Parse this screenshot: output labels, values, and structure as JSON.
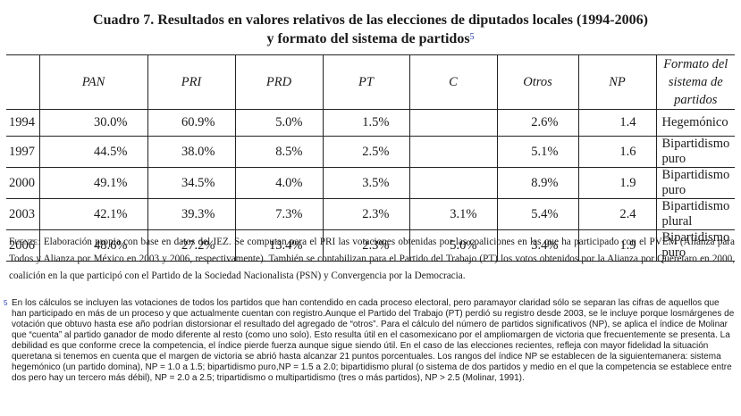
{
  "title": {
    "line1": "Cuadro 7. Resultados en valores relativos de las elecciones de diputados locales (1994-2006)",
    "line2": "y formato del sistema de partidos",
    "footnote_ref": "5"
  },
  "table": {
    "headers": [
      "",
      "PAN",
      "PRI",
      "PRD",
      "PT",
      "C",
      "Otros",
      "NP",
      "Formato del sistema de partidos"
    ],
    "rows": [
      {
        "year": "1994",
        "pan": "30.0%",
        "pri": "60.9%",
        "prd": "5.0%",
        "pt": "1.5%",
        "c": "",
        "otros": "2.6%",
        "np": "1.4",
        "formato": "Hegemónico"
      },
      {
        "year": "1997",
        "pan": "44.5%",
        "pri": "38.0%",
        "prd": "8.5%",
        "pt": "2.5%",
        "c": "",
        "otros": "5.1%",
        "np": "1.6",
        "formato": "Bipartidismo puro"
      },
      {
        "year": "2000",
        "pan": "49.1%",
        "pri": "34.5%",
        "prd": "4.0%",
        "pt": "3.5%",
        "c": "",
        "otros": "8.9%",
        "np": "1.9",
        "formato": "Bipartidismo puro"
      },
      {
        "year": "2003",
        "pan": "42.1%",
        "pri": "39.3%",
        "prd": "7.3%",
        "pt": "2.3%",
        "c": "3.1%",
        "otros": "5.4%",
        "np": "2.4",
        "formato": "Bipartidismo plural"
      },
      {
        "year": "2006",
        "pan": "48.6%",
        "pri": "27.2%",
        "prd": "13.4%",
        "pt": "2.3%",
        "c": "5.0%",
        "otros": "3.4%",
        "np": "1.9",
        "formato": "Bipartidismo puro"
      }
    ]
  },
  "source": {
    "label": "Fuente",
    "text": ": Elaboración propia con base en datos del IEZ. Se computan para el PRI las votaciones obtenidas por las coaliciones en las que ha participado con el PVEM (Alianza para Todos y Alianza por México en 2003 y 2006, respectivamente). También se contabilizan para el Partido del Trabajo (PT) los votos obtenidos por la Alianza por Querétaro en 2000, coalición en la que participó con el Partido de la Sociedad Nacionalista (PSN) y Convergencia por la Democracia."
  },
  "footnote": {
    "mark": "5",
    "text": "En los cálculos se incluyen las votaciones de todos los partidos que han contendido en cada proceso electoral, pero paramayor claridad sólo se separan las cifras de aquellos que han participado en más de un proceso y que actualmente cuentan con registro.Aunque el Partido del Trabajo (PT) perdió su registro desde 2003, se le incluye porque losmárgenes de votación que obtuvo hasta ese año podrían distorsionar el resultado del agregado de “otros”. Para el cálculo del número de partidos significativos (NP), se aplica el índice de Molinar que “cuenta” al partido ganador de modo diferente al resto (como uno solo). Esto resulta útil en el casomexicano por el ampliomargen de victoria que frecuentemente se presenta. La debilidad es que conforme crece la competencia, el índice pierde fuerza aunque sigue siendo útil. En el caso de las elecciones recientes, refleja con mayor fidelidad la situación queretana si tenemos en cuenta que el margen de victoria se abrió hasta alcanzar 21 puntos porcentuales. Los rangos del índice NP se establecen de la siguientemanera: sistema hegemónico (un partido domina), NP = 1.0 a 1.5; bipartidismo puro,NP = 1.5 a 2.0; bipartidismo plural (o sistema de dos partidos y medio en el que la competencia se establece entre dos pero hay un tercero más débil), NP = 2.0 a 2.5; tripartidismo o multipartidismo (tres o más partidos), NP > 2.5 (Molinar, 1991)."
  }
}
